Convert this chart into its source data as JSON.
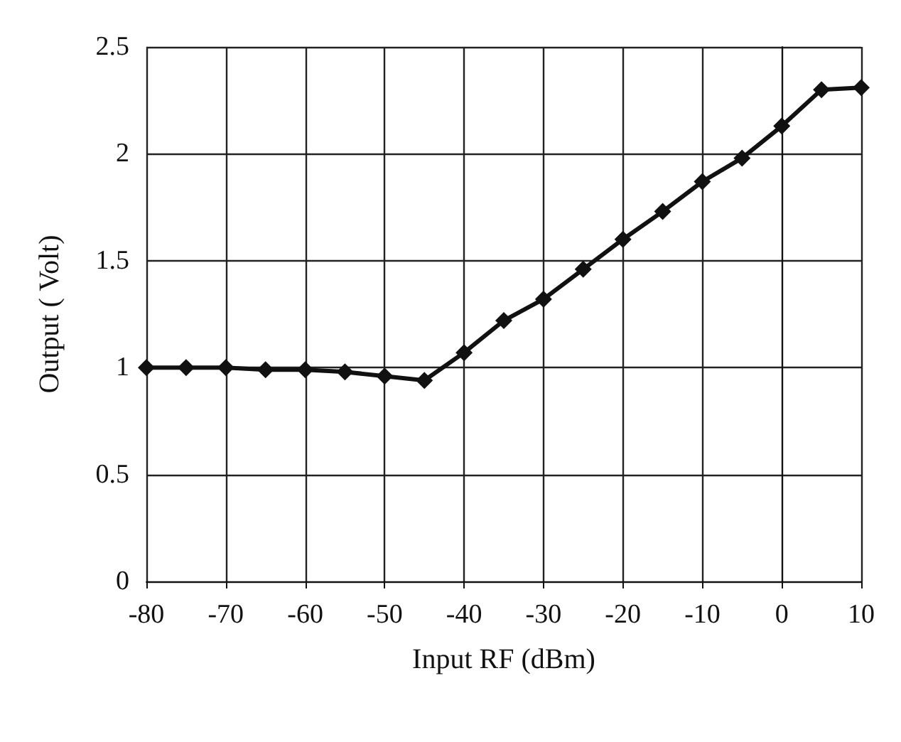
{
  "chart_data": {
    "type": "line",
    "xlabel": "Input RF (dBm)",
    "ylabel": "Output ( Volt)",
    "x": [
      -80,
      -75,
      -70,
      -65,
      -60,
      -55,
      -50,
      -45,
      -40,
      -35,
      -30,
      -25,
      -20,
      -15,
      -10,
      -5,
      0,
      5,
      10
    ],
    "series": [
      {
        "color": "#111111",
        "values": [
          1.0,
          1.0,
          1.0,
          0.99,
          0.99,
          0.98,
          0.96,
          0.94,
          1.07,
          1.22,
          1.32,
          1.46,
          1.6,
          1.73,
          1.87,
          1.98,
          2.13,
          2.3,
          2.31
        ]
      }
    ],
    "xlim": [
      -80,
      10
    ],
    "xticks": [
      -80,
      -70,
      -60,
      -50,
      -40,
      -30,
      -20,
      -10,
      0,
      10
    ],
    "ylim": [
      0,
      2.5
    ],
    "yticks": [
      0,
      0.5,
      1,
      1.5,
      2,
      2.5
    ],
    "grid": true,
    "marker": "diamond",
    "line_style": "solid"
  }
}
